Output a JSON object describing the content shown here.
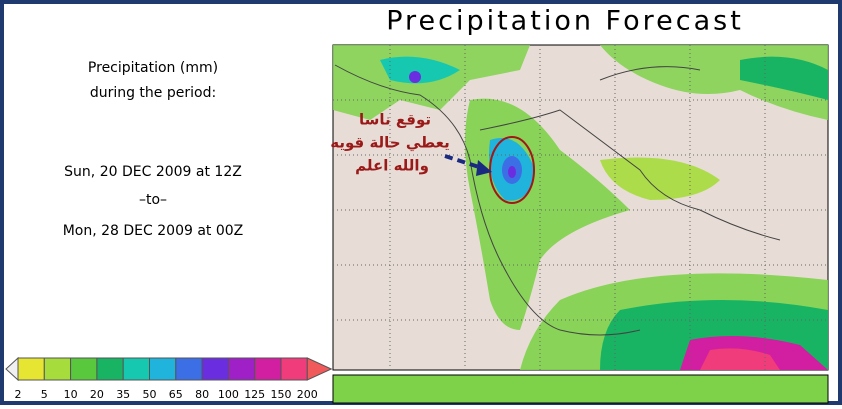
{
  "title": "Precipitation Forecast",
  "info": {
    "unit_line": "Precipitation (mm)",
    "period_line": "during the period:",
    "start": "Sun, 20 DEC 2009 at 12Z",
    "separator": "–to–",
    "end": "Mon, 28 DEC 2009 at 00Z"
  },
  "annotation": {
    "lines": [
      "توقع ناسا",
      "يعطي حالة قويه",
      "والله اعلم"
    ]
  },
  "legend": {
    "labels": [
      2,
      5,
      10,
      20,
      35,
      50,
      65,
      80,
      100,
      125,
      150,
      200
    ],
    "colors": [
      "#e6e632",
      "#a6dc3c",
      "#5ac83c",
      "#18b464",
      "#16c8b0",
      "#20b4dc",
      "#3c6ee6",
      "#6a2ee0",
      "#a020c8",
      "#d21ea0",
      "#f03c7a",
      "#f05a5a"
    ]
  }
}
